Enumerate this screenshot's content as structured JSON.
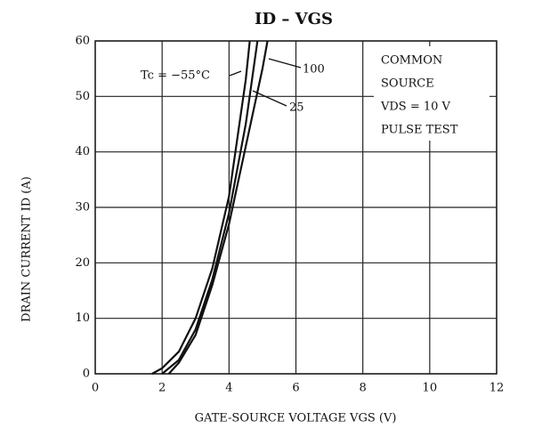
{
  "chart_data": {
    "type": "line",
    "title": "ID – VGS",
    "x_label": "GATE-SOURCE VOLTAGE  VGS  (V)",
    "y_label": "DRAIN CURRENT  ID  (A)",
    "annotations": [
      "COMMON",
      "SOURCE",
      "VDS = 10 V",
      "PULSE TEST"
    ],
    "series": [
      {
        "name": "Tc = −55°C",
        "color": "#111111",
        "x": [
          1.7,
          2,
          2.5,
          3,
          3.5,
          4,
          4.5,
          4.62
        ],
        "values": [
          0,
          1,
          4,
          10,
          19,
          32,
          53,
          60
        ]
      },
      {
        "name": "25",
        "color": "#111111",
        "x": [
          2,
          2.5,
          3,
          3.5,
          4,
          4.5,
          4.85
        ],
        "values": [
          0,
          2.5,
          8,
          17,
          29,
          45,
          60
        ]
      },
      {
        "name": "100",
        "color": "#111111",
        "x": [
          2.2,
          2.5,
          3,
          3.5,
          4,
          4.5,
          5,
          5.15
        ],
        "values": [
          0,
          2,
          7,
          16,
          27,
          41,
          55,
          60
        ]
      }
    ],
    "xlim": [
      0,
      12
    ],
    "xticks": [
      0,
      2,
      4,
      6,
      8,
      10,
      12
    ],
    "ylim": [
      0,
      60
    ],
    "yticks": [
      0,
      10,
      20,
      30,
      40,
      50,
      60
    ],
    "grid": true
  }
}
